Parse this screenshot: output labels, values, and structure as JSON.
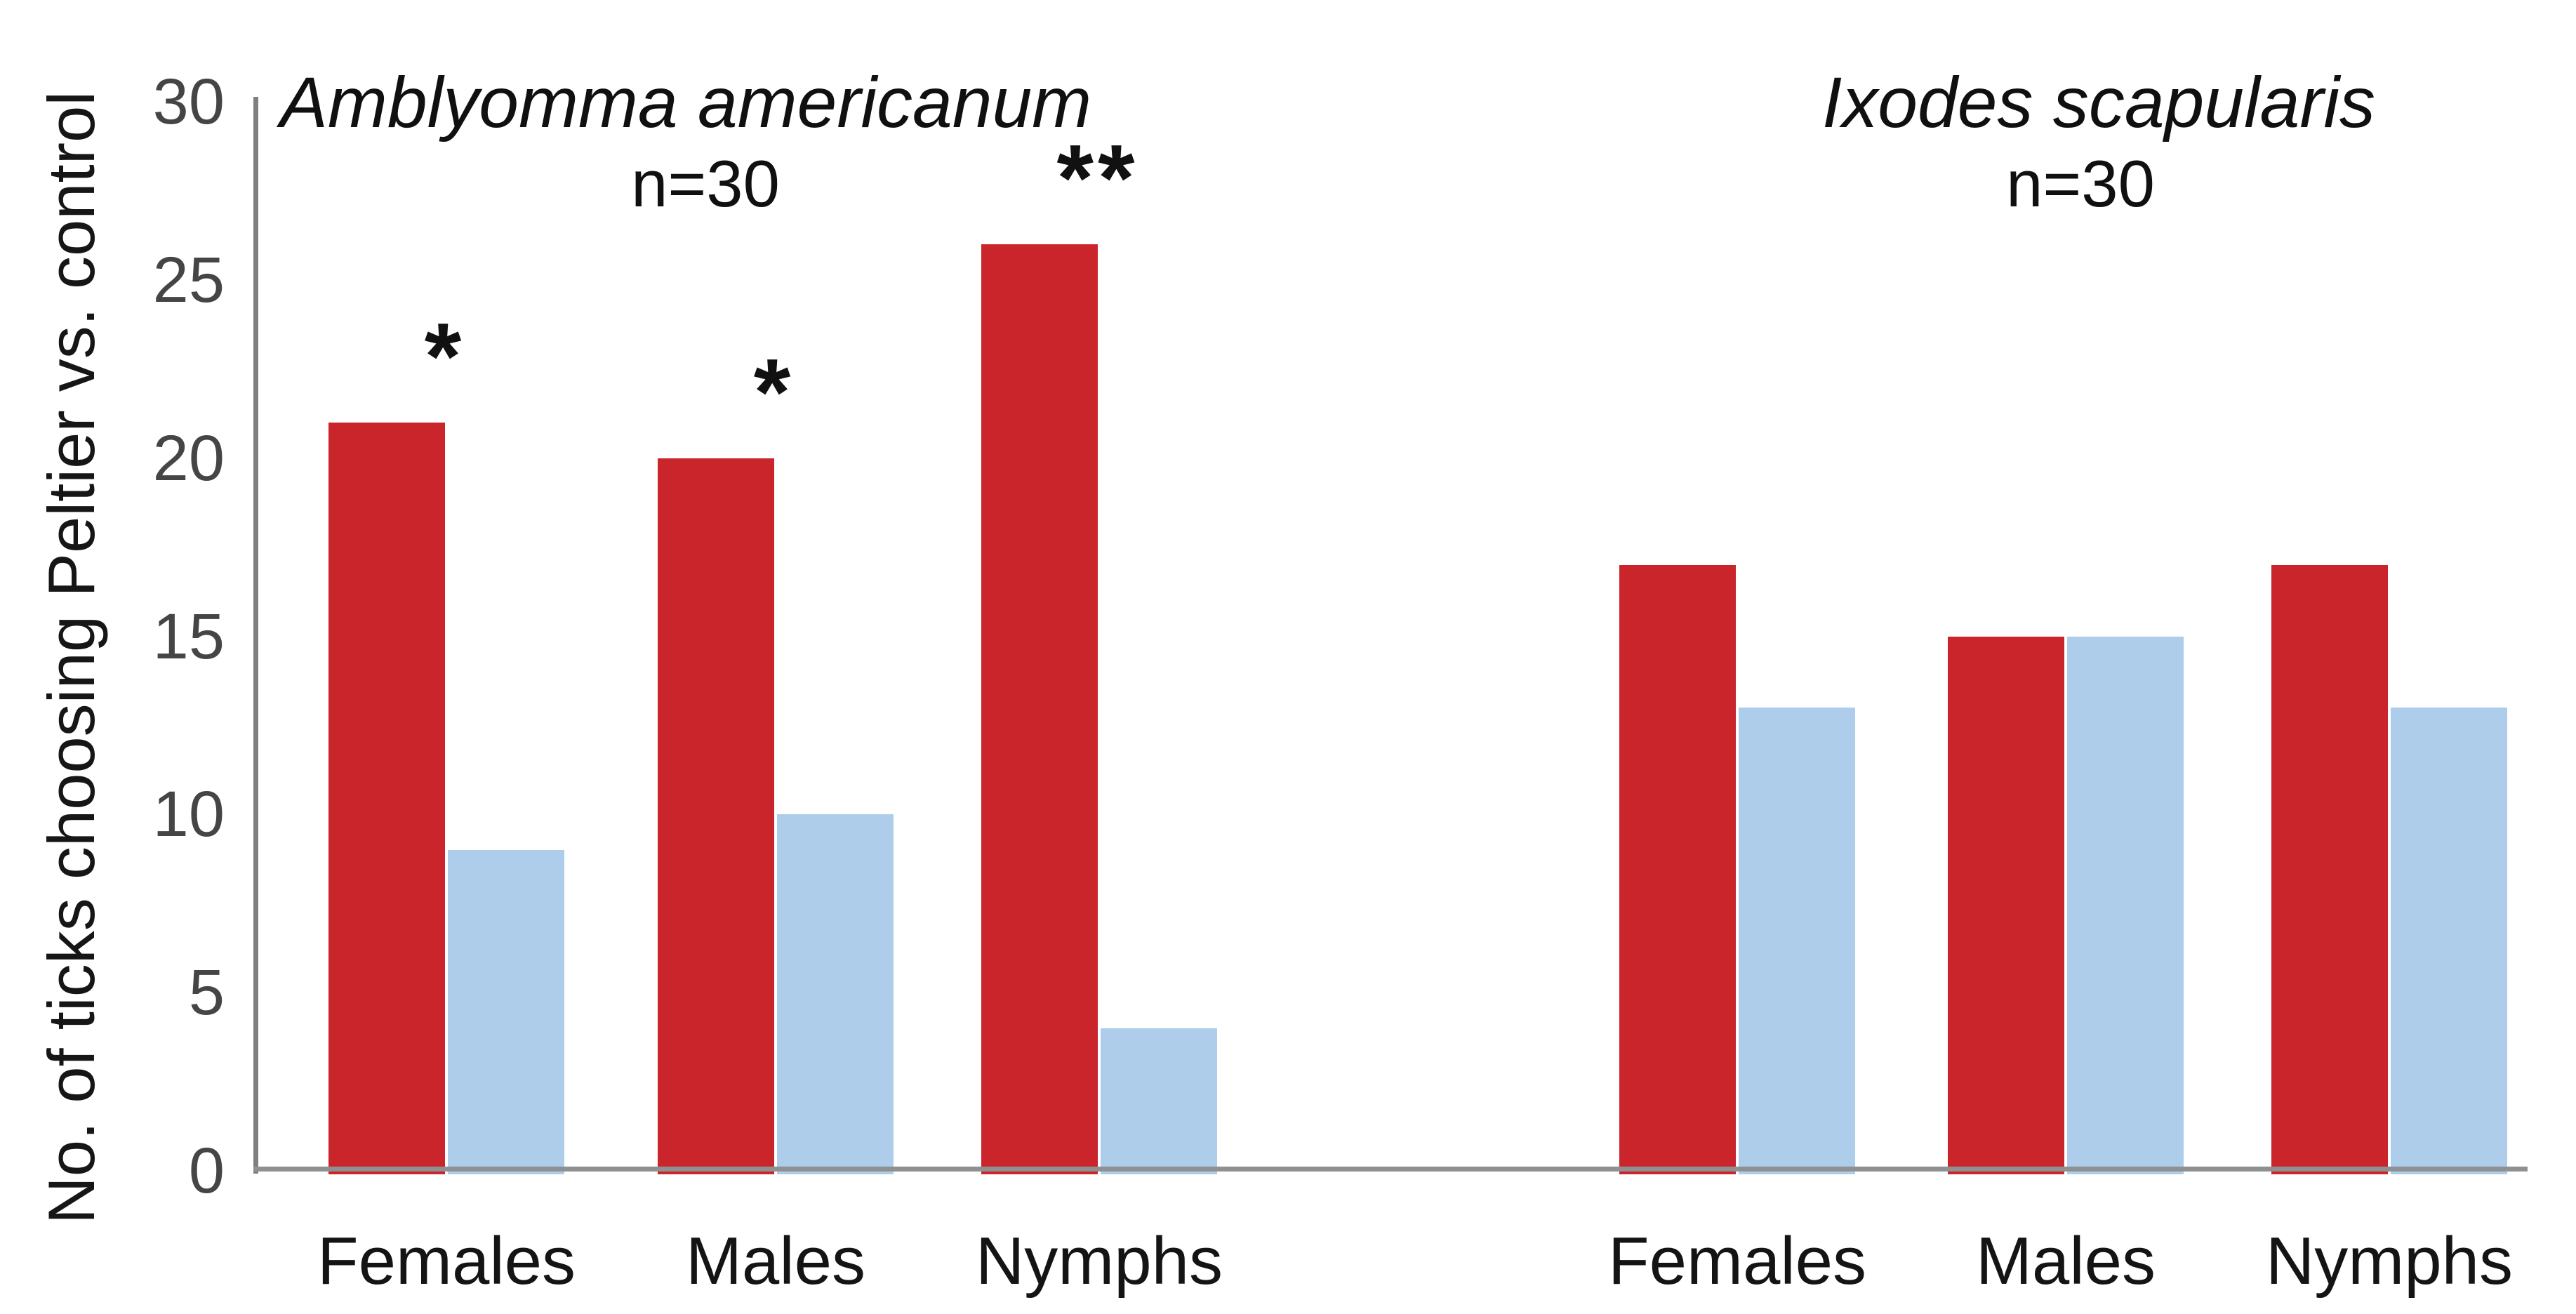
{
  "y_axis": {
    "title": "No. of ticks choosing Peltier vs. control",
    "ticks": [
      0,
      5,
      10,
      15,
      20,
      25,
      30
    ],
    "range": [
      0,
      30
    ]
  },
  "colors": {
    "peltier_red": "#C9252B",
    "control_blue": "#ADCDEA",
    "axis_gray": "#8E9092",
    "tick_text_gray": "#454545",
    "text_black": "#141414"
  },
  "chart_data": [
    {
      "type": "bar",
      "title": "Amblyomma americanum",
      "subtitle": "n=30",
      "categories": [
        "Females",
        "Males",
        "Nymphs"
      ],
      "series": [
        {
          "name": "Peltier",
          "color": "#C9252B",
          "values": [
            21,
            20,
            26
          ]
        },
        {
          "name": "control",
          "color": "#ADCDEA",
          "values": [
            9,
            10,
            4
          ]
        }
      ],
      "significance": [
        "*",
        "*",
        "**"
      ],
      "ylabel": "No. of ticks choosing Peltier vs. control",
      "ylim": [
        0,
        30
      ],
      "grid": false,
      "legend": "none"
    },
    {
      "type": "bar",
      "title": "Ixodes scapularis",
      "subtitle": "n=30",
      "categories": [
        "Females",
        "Males",
        "Nymphs"
      ],
      "series": [
        {
          "name": "Peltier",
          "color": "#C9252B",
          "values": [
            17,
            15,
            17
          ]
        },
        {
          "name": "control",
          "color": "#ADCDEA",
          "values": [
            13,
            15,
            13
          ]
        }
      ],
      "significance": [
        "",
        "",
        ""
      ],
      "ylabel": "No. of ticks choosing Peltier vs. control",
      "ylim": [
        0,
        30
      ],
      "grid": false,
      "legend": "none"
    }
  ]
}
